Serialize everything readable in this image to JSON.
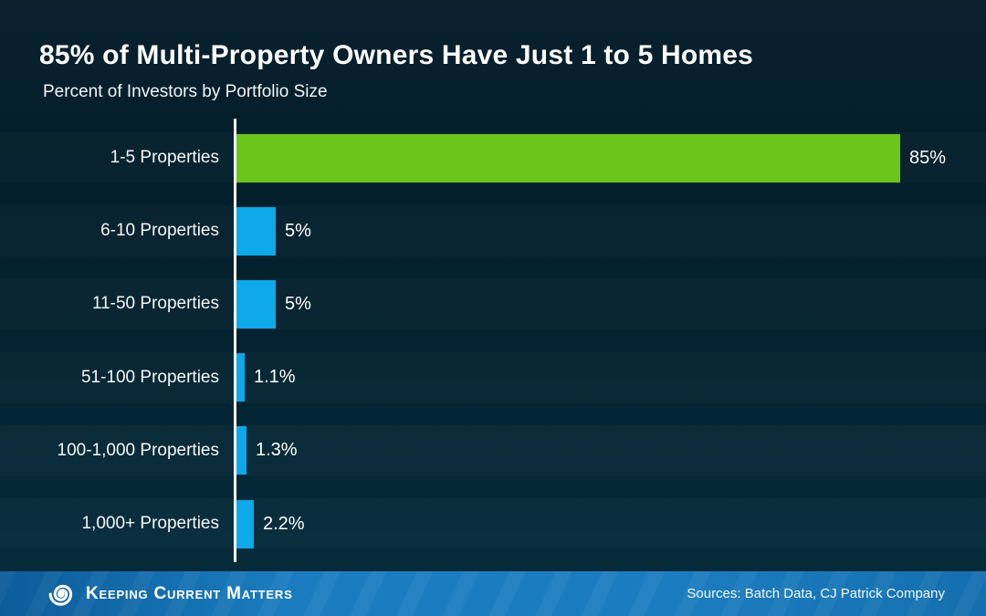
{
  "header": {
    "title": "85% of Multi-Property Owners Have Just 1 to 5 Homes",
    "subtitle": "Percent of Investors by Portfolio Size"
  },
  "chart_data": {
    "type": "bar",
    "orientation": "horizontal",
    "categories": [
      "1-5 Properties",
      "6-10 Properties",
      "11-50 Properties",
      "51-100 Properties",
      "100-1,000 Properties",
      "1,000+ Properties"
    ],
    "values": [
      85,
      5,
      5,
      1.1,
      1.3,
      2.2
    ],
    "value_labels": [
      "85%",
      "5%",
      "5%",
      "1.1%",
      "1.3%",
      "2.2%"
    ],
    "bar_colors": [
      "#6cc51b",
      "#0da9e8",
      "#0da9e8",
      "#0da9e8",
      "#0da9e8",
      "#0da9e8"
    ],
    "title": "85% of Multi-Property Owners Have Just 1 to 5 Homes",
    "xlabel": "",
    "ylabel": "",
    "xlim": [
      0,
      96
    ],
    "grid": false,
    "legend": false,
    "axis_line_color": "#ffffff"
  },
  "colors": {
    "background": "#04222f",
    "highlight_green": "#6cc51b",
    "bar_blue": "#0da9e8",
    "footer_blue": "#1b7dc0",
    "text": "#ffffff"
  },
  "footer": {
    "brand": "Keeping Current Matters",
    "logo": "kcm-spiral-logo",
    "sources": "Sources: Batch Data, CJ Patrick Company"
  }
}
